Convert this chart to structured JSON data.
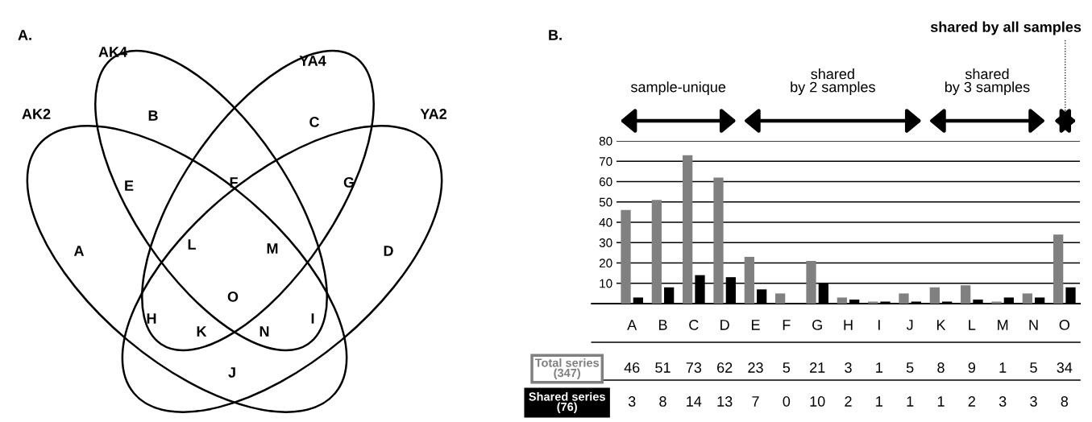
{
  "chart_data": [
    {
      "type": "other",
      "title": "A.",
      "annotations": [
        "AK2",
        "AK4",
        "YA4",
        "YA2",
        "A",
        "B",
        "C",
        "D",
        "E",
        "F",
        "G",
        "H",
        "I",
        "J",
        "K",
        "L",
        "M",
        "N",
        "O"
      ]
    },
    {
      "type": "bar",
      "title": "B.",
      "categories": [
        "A",
        "B",
        "C",
        "D",
        "E",
        "F",
        "G",
        "H",
        "I",
        "J",
        "K",
        "L",
        "M",
        "N",
        "O"
      ],
      "series": [
        {
          "name": "Total series\n(347)",
          "color": "#808080",
          "values": [
            46,
            51,
            73,
            62,
            23,
            5,
            21,
            3,
            1,
            5,
            8,
            9,
            1,
            5,
            34
          ]
        },
        {
          "name": "Shared series\n(76)",
          "color": "#000000",
          "values": [
            3,
            8,
            14,
            13,
            7,
            0,
            10,
            2,
            1,
            1,
            1,
            2,
            3,
            3,
            8
          ]
        }
      ],
      "ylim": [
        0,
        80
      ],
      "yticks": [
        10,
        20,
        30,
        40,
        50,
        60,
        70,
        80
      ],
      "grid": "y",
      "legend": false,
      "data_labels": true,
      "annotations": [
        "sample-unique",
        "shared\nby 2 samples",
        "shared\nby 3 samples",
        "shared by all samples"
      ]
    }
  ]
}
